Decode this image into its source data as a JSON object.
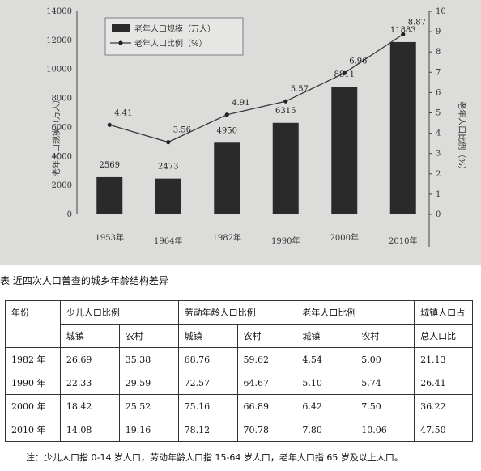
{
  "chart_data": {
    "type": "bar",
    "title": "",
    "categories": [
      "1953年",
      "1964年",
      "1982年",
      "1990年",
      "2000年",
      "2010年"
    ],
    "series": [
      {
        "name": "老年人口规模（万人）",
        "type": "bar",
        "axis": "left",
        "values": [
          2569,
          2473,
          4950,
          6315,
          8811,
          11883
        ]
      },
      {
        "name": "老年人口比例（%）",
        "type": "line",
        "axis": "right",
        "values": [
          4.41,
          3.56,
          4.91,
          5.57,
          6.96,
          8.87
        ]
      }
    ],
    "ylabel_left": "老年人口规模（万人）",
    "ylabel_right": "老年人口比例（%）",
    "ylim_left": [
      0,
      14000
    ],
    "ylim_right": [
      0,
      10
    ],
    "yticks_left": [
      "0",
      "2000",
      "4000",
      "6000",
      "8000",
      "10000",
      "12000",
      "14000"
    ],
    "yticks_right": [
      "0",
      "1",
      "2",
      "3",
      "4",
      "5",
      "6",
      "7",
      "8",
      "9",
      "10"
    ],
    "legend_position": "top-left",
    "bar_color": "#2a2a2a",
    "line_color": "#3a3a3a"
  },
  "table": {
    "caption": "表  近四次人口普查的城乡年龄结构差异",
    "headers": {
      "year": "年份",
      "child": "少儿人口比例",
      "labor": "劳动年龄人口比例",
      "elderly": "老年人口比例",
      "urban_share_line1": "城镇人口占",
      "urban_share_line2": "总人口比"
    },
    "sub_headers": [
      "城镇",
      "农村",
      "城镇",
      "农村",
      "城镇",
      "农村"
    ],
    "rows": [
      {
        "year": "1982 年",
        "values": [
          "26.69",
          "35.38",
          "68.76",
          "59.62",
          "4.54",
          "5.00",
          "21.13"
        ]
      },
      {
        "year": "1990 年",
        "values": [
          "22.33",
          "29.59",
          "72.57",
          "64.67",
          "5.10",
          "5.74",
          "26.41"
        ]
      },
      {
        "year": "2000 年",
        "values": [
          "18.42",
          "25.52",
          "75.16",
          "66.89",
          "6.42",
          "7.50",
          "36.22"
        ]
      },
      {
        "year": "2010 年",
        "values": [
          "14.08",
          "19.16",
          "78.12",
          "70.78",
          "7.80",
          "10.06",
          "47.50"
        ]
      }
    ],
    "note": "注：少儿人口指 0-14 岁人口，劳动年龄人口指 15-64 岁人口，老年人口指 65 岁及以上人口。"
  }
}
